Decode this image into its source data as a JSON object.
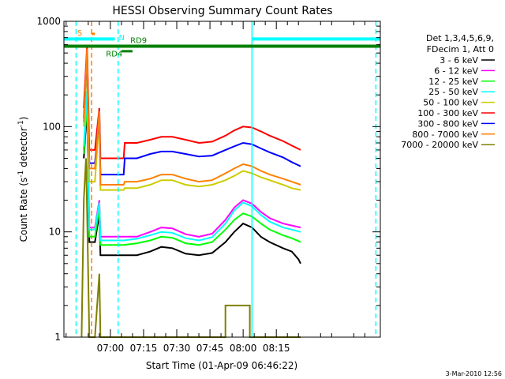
{
  "chart_data": {
    "type": "line",
    "title": "HESSI Observing Summary Count Rates",
    "xlabel": "Start Time (01-Apr-09 06:46:22)",
    "ylabel_main": "Count Rate (s",
    "ylabel_sup1": "-1",
    "ylabel_mid": " detector",
    "ylabel_sup2": "-1",
    "ylabel_end": ")",
    "yscale": "log",
    "ylim": [
      1,
      1000
    ],
    "xlim_minutes": [
      -21,
      122
    ],
    "x_ticks": [
      {
        "label": "07:00",
        "min": 0
      },
      {
        "label": "07:15",
        "min": 15
      },
      {
        "label": "07:30",
        "min": 30
      },
      {
        "label": "07:45",
        "min": 45
      },
      {
        "label": "08:00",
        "min": 60
      },
      {
        "label": "08:15",
        "min": 75
      }
    ],
    "y_ticks": [
      {
        "label": "1",
        "v": 1
      },
      {
        "label": "10",
        "v": 10
      },
      {
        "label": "100",
        "v": 100
      },
      {
        "label": "1000",
        "v": 1000
      }
    ],
    "legend_header": [
      "Det 1,3,4,5,6,9,",
      "FDecim 1, Att 0"
    ],
    "series": [
      {
        "name": "3 - 6 keV",
        "color": "#000000",
        "points": [
          [
            -12,
            50
          ],
          [
            -10.5,
            150
          ],
          [
            -9.5,
            8
          ],
          [
            -7,
            8
          ],
          [
            -5,
            15
          ],
          [
            -4.5,
            6
          ],
          [
            6,
            6
          ],
          [
            12,
            6
          ],
          [
            18,
            6.5
          ],
          [
            23,
            7.2
          ],
          [
            28,
            7
          ],
          [
            34,
            6.2
          ],
          [
            40,
            6
          ],
          [
            46,
            6.3
          ],
          [
            52,
            8
          ],
          [
            56,
            10
          ],
          [
            60,
            12
          ],
          [
            64,
            11
          ],
          [
            68,
            9
          ],
          [
            72,
            8
          ],
          [
            78,
            7
          ],
          [
            82,
            6.5
          ],
          [
            85,
            5.5
          ],
          [
            86,
            5
          ]
        ]
      },
      {
        "name": "6 - 12 keV",
        "color": "#ff00ff",
        "points": [
          [
            -12,
            60
          ],
          [
            -10.5,
            200
          ],
          [
            -9.5,
            11
          ],
          [
            -7,
            11
          ],
          [
            -5,
            20
          ],
          [
            -4.5,
            9
          ],
          [
            6,
            9
          ],
          [
            12,
            9
          ],
          [
            18,
            10
          ],
          [
            23,
            11
          ],
          [
            28,
            10.8
          ],
          [
            34,
            9.5
          ],
          [
            40,
            9
          ],
          [
            46,
            9.6
          ],
          [
            52,
            13
          ],
          [
            56,
            17
          ],
          [
            60,
            20
          ],
          [
            64,
            18.5
          ],
          [
            68,
            15.5
          ],
          [
            72,
            13.5
          ],
          [
            78,
            12
          ],
          [
            82,
            11.5
          ],
          [
            86,
            11
          ]
        ]
      },
      {
        "name": "12 - 25 keV",
        "color": "#00ff00",
        "points": [
          [
            -12,
            55
          ],
          [
            -10.5,
            180
          ],
          [
            -9.5,
            9
          ],
          [
            -7,
            9
          ],
          [
            -5,
            17
          ],
          [
            -4.5,
            7.5
          ],
          [
            6,
            7.5
          ],
          [
            12,
            7.8
          ],
          [
            18,
            8.3
          ],
          [
            23,
            9
          ],
          [
            28,
            8.8
          ],
          [
            34,
            7.8
          ],
          [
            40,
            7.5
          ],
          [
            46,
            8
          ],
          [
            52,
            10.5
          ],
          [
            56,
            13
          ],
          [
            60,
            15
          ],
          [
            64,
            14
          ],
          [
            68,
            12
          ],
          [
            72,
            10.5
          ],
          [
            78,
            9.3
          ],
          [
            82,
            8.7
          ],
          [
            86,
            8
          ]
        ]
      },
      {
        "name": "25 - 50 keV",
        "color": "#00ffff",
        "points": [
          [
            -12,
            65
          ],
          [
            -10.5,
            220
          ],
          [
            -9.5,
            10.5
          ],
          [
            -7,
            10.5
          ],
          [
            -5,
            19
          ],
          [
            -4.5,
            8.3
          ],
          [
            6,
            8.3
          ],
          [
            12,
            8.6
          ],
          [
            18,
            9.3
          ],
          [
            23,
            10
          ],
          [
            28,
            9.8
          ],
          [
            34,
            8.7
          ],
          [
            40,
            8.3
          ],
          [
            46,
            8.9
          ],
          [
            52,
            12
          ],
          [
            56,
            16
          ],
          [
            60,
            19
          ],
          [
            64,
            17.5
          ],
          [
            68,
            14.5
          ],
          [
            72,
            12.5
          ],
          [
            78,
            11
          ],
          [
            82,
            10.5
          ],
          [
            86,
            10
          ]
        ]
      },
      {
        "name": "50 - 100 keV",
        "color": "#cccc00",
        "points": [
          [
            -12,
            100
          ],
          [
            -10.5,
            400
          ],
          [
            -9.5,
            30
          ],
          [
            -7,
            30
          ],
          [
            -5,
            120
          ],
          [
            -4.5,
            25
          ],
          [
            6,
            25
          ],
          [
            6.5,
            26
          ],
          [
            12,
            26
          ],
          [
            18,
            28
          ],
          [
            23,
            31
          ],
          [
            28,
            31
          ],
          [
            34,
            28
          ],
          [
            40,
            27
          ],
          [
            46,
            28
          ],
          [
            52,
            31
          ],
          [
            56,
            34
          ],
          [
            60,
            38
          ],
          [
            64,
            36
          ],
          [
            68,
            33
          ],
          [
            72,
            31
          ],
          [
            78,
            28
          ],
          [
            82,
            26
          ],
          [
            86,
            25
          ]
        ]
      },
      {
        "name": "100 - 300 keV",
        "color": "#ff0000",
        "points": [
          [
            -12,
            150
          ],
          [
            -10.5,
            600
          ],
          [
            -9.5,
            60
          ],
          [
            -7,
            60
          ],
          [
            -5,
            150
          ],
          [
            -4.5,
            50
          ],
          [
            6,
            50
          ],
          [
            6.5,
            70
          ],
          [
            12,
            70
          ],
          [
            18,
            75
          ],
          [
            23,
            80
          ],
          [
            28,
            80
          ],
          [
            34,
            75
          ],
          [
            40,
            70
          ],
          [
            46,
            72
          ],
          [
            52,
            82
          ],
          [
            56,
            92
          ],
          [
            60,
            100
          ],
          [
            64,
            98
          ],
          [
            68,
            90
          ],
          [
            72,
            82
          ],
          [
            78,
            73
          ],
          [
            82,
            66
          ],
          [
            86,
            60
          ]
        ]
      },
      {
        "name": "300 - 800 keV",
        "color": "#0000ff",
        "points": [
          [
            -12,
            120
          ],
          [
            -10.5,
            500
          ],
          [
            -9.5,
            45
          ],
          [
            -7,
            45
          ],
          [
            -5,
            130
          ],
          [
            -4.5,
            35
          ],
          [
            6,
            35
          ],
          [
            6.5,
            50
          ],
          [
            12,
            50
          ],
          [
            18,
            55
          ],
          [
            23,
            58
          ],
          [
            28,
            58
          ],
          [
            34,
            55
          ],
          [
            40,
            52
          ],
          [
            46,
            53
          ],
          [
            52,
            60
          ],
          [
            56,
            65
          ],
          [
            60,
            70
          ],
          [
            64,
            68
          ],
          [
            68,
            62
          ],
          [
            72,
            57
          ],
          [
            78,
            51
          ],
          [
            82,
            46
          ],
          [
            86,
            42
          ]
        ]
      },
      {
        "name": "800 - 7000 keV",
        "color": "#ff8000",
        "points": [
          [
            -12,
            110
          ],
          [
            -10.5,
            550
          ],
          [
            -9.5,
            40
          ],
          [
            -7,
            40
          ],
          [
            -5,
            140
          ],
          [
            -4.5,
            28
          ],
          [
            6,
            28
          ],
          [
            6.5,
            30
          ],
          [
            12,
            30
          ],
          [
            18,
            32
          ],
          [
            23,
            35
          ],
          [
            28,
            35
          ],
          [
            34,
            32
          ],
          [
            40,
            30
          ],
          [
            46,
            31
          ],
          [
            52,
            36
          ],
          [
            56,
            40
          ],
          [
            60,
            44
          ],
          [
            64,
            42
          ],
          [
            68,
            38
          ],
          [
            72,
            35
          ],
          [
            78,
            32
          ],
          [
            82,
            30
          ],
          [
            86,
            28
          ]
        ]
      },
      {
        "name": "7000 - 20000 keV",
        "color": "#808000",
        "points": [
          [
            -13,
            1
          ],
          [
            -12,
            20
          ],
          [
            -11,
            50
          ],
          [
            -10.5,
            15
          ],
          [
            -9.5,
            1
          ],
          [
            -7,
            1
          ],
          [
            -5,
            4
          ],
          [
            -4.5,
            1
          ],
          [
            -1,
            1
          ],
          [
            52,
            1
          ],
          [
            52,
            2
          ],
          [
            63,
            2
          ],
          [
            63,
            1
          ],
          [
            86,
            1
          ]
        ]
      }
    ],
    "markers": {
      "S_label": "S",
      "N_label": "N",
      "RD4_label": "RD4",
      "RD9_label": "RD9"
    }
  },
  "footer": {
    "date": "3-Mar-2010 12:56"
  }
}
